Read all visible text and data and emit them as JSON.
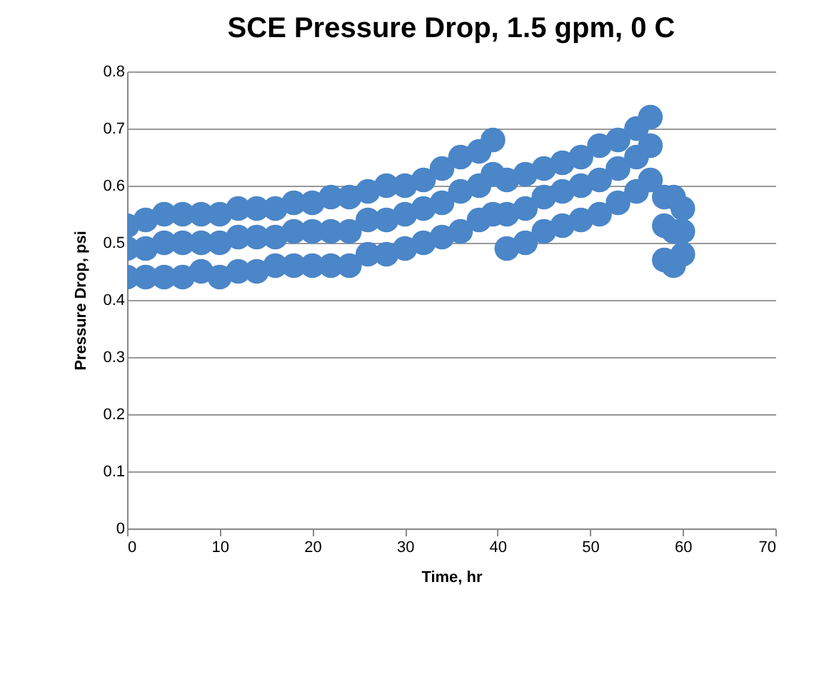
{
  "chart_data": {
    "type": "scatter",
    "title": "SCE Pressure Drop, 1.5 gpm, 0 C",
    "xlabel": "Time, hr",
    "ylabel": "Pressure Drop, psi",
    "xlim": [
      0,
      70
    ],
    "xticks": [
      0,
      10,
      20,
      30,
      40,
      50,
      60,
      70
    ],
    "ylim": [
      0,
      0.8
    ],
    "yticks": [
      0,
      0.1,
      0.2,
      0.3,
      0.4,
      0.5,
      0.6,
      0.7,
      0.8
    ],
    "grid": "y",
    "legend": false,
    "marker": "circle",
    "series": [
      {
        "color": "#4a86c8",
        "x": [
          0,
          2,
          4,
          6,
          8,
          10,
          12,
          14,
          16,
          18,
          20,
          22,
          24,
          26,
          28,
          30,
          32,
          34,
          36,
          38,
          39.5,
          41,
          43,
          45,
          47,
          49,
          51,
          53,
          55,
          56.5,
          58,
          59,
          60,
          0,
          2,
          4,
          6,
          8,
          10,
          12,
          14,
          16,
          18,
          20,
          22,
          24,
          26,
          28,
          30,
          32,
          34,
          36,
          38,
          39.5,
          41,
          43,
          45,
          47,
          49,
          51,
          53,
          55,
          56.5,
          58,
          59,
          60,
          0,
          2,
          4,
          6,
          8,
          10,
          12,
          14,
          16,
          18,
          20,
          22,
          24,
          26,
          28,
          30,
          32,
          34,
          36,
          38,
          39.5,
          41,
          43,
          45,
          47,
          49,
          51,
          53,
          55,
          56.5,
          58,
          59,
          60
        ],
        "values": [
          0.44,
          0.44,
          0.44,
          0.44,
          0.45,
          0.44,
          0.45,
          0.45,
          0.46,
          0.46,
          0.46,
          0.46,
          0.46,
          0.48,
          0.48,
          0.49,
          0.5,
          0.51,
          0.52,
          0.54,
          0.55,
          0.49,
          0.5,
          0.52,
          0.53,
          0.54,
          0.55,
          0.57,
          0.59,
          0.61,
          0.47,
          0.46,
          0.48,
          0.49,
          0.49,
          0.5,
          0.5,
          0.5,
          0.5,
          0.51,
          0.51,
          0.51,
          0.52,
          0.52,
          0.52,
          0.52,
          0.54,
          0.54,
          0.55,
          0.56,
          0.57,
          0.59,
          0.6,
          0.62,
          0.55,
          0.56,
          0.58,
          0.59,
          0.6,
          0.61,
          0.63,
          0.65,
          0.67,
          0.53,
          0.52,
          0.52,
          0.53,
          0.54,
          0.55,
          0.55,
          0.55,
          0.55,
          0.56,
          0.56,
          0.56,
          0.57,
          0.57,
          0.58,
          0.58,
          0.59,
          0.6,
          0.6,
          0.61,
          0.63,
          0.65,
          0.66,
          0.68,
          0.61,
          0.62,
          0.63,
          0.64,
          0.65,
          0.67,
          0.68,
          0.7,
          0.72,
          0.58,
          0.58,
          0.56
        ]
      }
    ]
  }
}
